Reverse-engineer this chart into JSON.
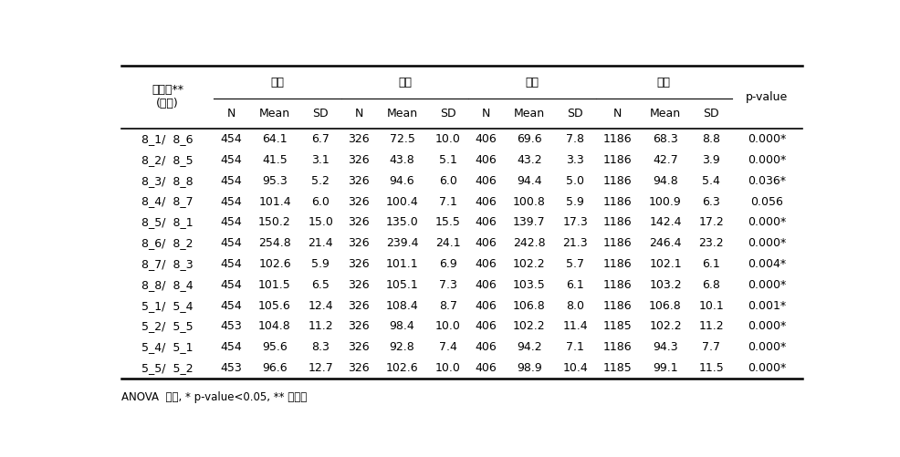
{
  "group_headers": [
    "태음",
    "소음",
    "소양",
    "전체"
  ],
  "sub_headers": [
    "N",
    "Mean",
    "SD",
    "N",
    "Mean",
    "SD",
    "N",
    "Mean",
    "SD",
    "N",
    "Mean",
    "SD"
  ],
  "last_col_header": "p-value",
  "rows": [
    [
      "8_1/  8_6",
      "454",
      "64.1",
      "6.7",
      "326",
      "72.5",
      "10.0",
      "406",
      "69.6",
      "7.8",
      "1186",
      "68.3",
      "8.8",
      "0.000*"
    ],
    [
      "8_2/  8_5",
      "454",
      "41.5",
      "3.1",
      "326",
      "43.8",
      "5.1",
      "406",
      "43.2",
      "3.3",
      "1186",
      "42.7",
      "3.9",
      "0.000*"
    ],
    [
      "8_3/  8_8",
      "454",
      "95.3",
      "5.2",
      "326",
      "94.6",
      "6.0",
      "406",
      "94.4",
      "5.0",
      "1186",
      "94.8",
      "5.4",
      "0.036*"
    ],
    [
      "8_4/  8_7",
      "454",
      "101.4",
      "6.0",
      "326",
      "100.4",
      "7.1",
      "406",
      "100.8",
      "5.9",
      "1186",
      "100.9",
      "6.3",
      "0.056"
    ],
    [
      "8_5/  8_1",
      "454",
      "150.2",
      "15.0",
      "326",
      "135.0",
      "15.5",
      "406",
      "139.7",
      "17.3",
      "1186",
      "142.4",
      "17.2",
      "0.000*"
    ],
    [
      "8_6/  8_2",
      "454",
      "254.8",
      "21.4",
      "326",
      "239.4",
      "24.1",
      "406",
      "242.8",
      "21.3",
      "1186",
      "246.4",
      "23.2",
      "0.000*"
    ],
    [
      "8_7/  8_3",
      "454",
      "102.6",
      "5.9",
      "326",
      "101.1",
      "6.9",
      "406",
      "102.2",
      "5.7",
      "1186",
      "102.1",
      "6.1",
      "0.004*"
    ],
    [
      "8_8/  8_4",
      "454",
      "101.5",
      "6.5",
      "326",
      "105.1",
      "7.3",
      "406",
      "103.5",
      "6.1",
      "1186",
      "103.2",
      "6.8",
      "0.000*"
    ],
    [
      "5_1/  5_4",
      "454",
      "105.6",
      "12.4",
      "326",
      "108.4",
      "8.7",
      "406",
      "106.8",
      "8.0",
      "1186",
      "106.8",
      "10.1",
      "0.001*"
    ],
    [
      "5_2/  5_5",
      "453",
      "104.8",
      "11.2",
      "326",
      "98.4",
      "10.0",
      "406",
      "102.2",
      "11.4",
      "1185",
      "102.2",
      "11.2",
      "0.000*"
    ],
    [
      "5_4/  5_1",
      "454",
      "95.6",
      "8.3",
      "326",
      "92.8",
      "7.4",
      "406",
      "94.2",
      "7.1",
      "1186",
      "94.3",
      "7.7",
      "0.000*"
    ],
    [
      "5_5/  5_2",
      "453",
      "96.6",
      "12.7",
      "326",
      "102.6",
      "10.0",
      "406",
      "98.9",
      "10.4",
      "1185",
      "99.1",
      "11.5",
      "0.000*"
    ]
  ],
  "footer": "ANOVA  검정, * p-value<0.05, ** 백분율",
  "bg_color": "#ffffff",
  "text_color": "#000000",
  "font_size": 9.0
}
